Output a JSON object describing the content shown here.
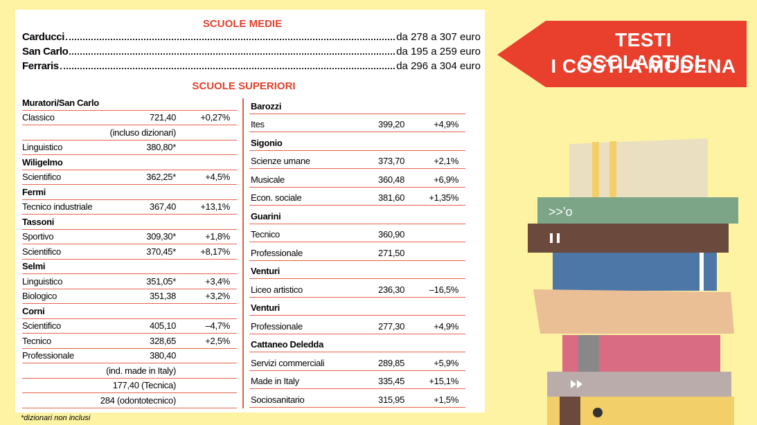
{
  "title_lines": [
    "TESTI SCOLASTICI:",
    "I COSTI A MODENA"
  ],
  "medie": {
    "heading": "SCUOLE MEDIE",
    "rows": [
      {
        "name": "Carducci",
        "range": "da 278 a 307 euro"
      },
      {
        "name": "San Carlo",
        "range": "da 195 a 259 euro"
      },
      {
        "name": "Ferraris",
        "range": "da 296 a 304 euro"
      }
    ]
  },
  "superiori": {
    "heading": "SCUOLE SUPERIORI",
    "left": [
      {
        "school": "Muratori/San Carlo"
      },
      {
        "course": "Classico",
        "price": "721,40",
        "change": "+0,27%"
      },
      {
        "note": "(incluso dizionari)"
      },
      {
        "course": "Linguistico",
        "price": "380,80*"
      },
      {
        "school": "Wiligelmo"
      },
      {
        "course": "Scientifico",
        "price": "362,25*",
        "change": "+4,5%"
      },
      {
        "school": "Fermi"
      },
      {
        "course": "Tecnico industriale",
        "price": "367,40",
        "change": "+13,1%"
      },
      {
        "school": "Tassoni"
      },
      {
        "course": "Sportivo",
        "price": "309,30*",
        "change": "+1,8%"
      },
      {
        "course": "Scientifico",
        "price": "370,45*",
        "change": "+8,17%"
      },
      {
        "school": "Selmi"
      },
      {
        "course": "Linguistico",
        "price": "351,05*",
        "change": "+3,4%"
      },
      {
        "course": "Biologico",
        "price": "351,38",
        "change": "+3,2%"
      },
      {
        "school": "Corni"
      },
      {
        "course": "Scientifico",
        "price": "405,10",
        "change": "–4,7%"
      },
      {
        "course": "Tecnico",
        "price": "328,65",
        "change": "+2,5%"
      },
      {
        "course": "Professionale",
        "price": "380,40"
      },
      {
        "note": "(ind. made in Italy)"
      },
      {
        "note": "177,40 (Tecnica)"
      },
      {
        "note": "284 (odontotecnico)"
      }
    ],
    "right": [
      {
        "school": "Barozzi"
      },
      {
        "course": "Ites",
        "price": "399,20",
        "change": "+4,9%"
      },
      {
        "school": "Sigonio"
      },
      {
        "course": "Scienze umane",
        "price": "373,70",
        "change": "+2,1%"
      },
      {
        "course": "Musicale",
        "price": "360,48",
        "change": "+6,9%"
      },
      {
        "course": "Econ. sociale",
        "price": "381,60",
        "change": "+1,35%"
      },
      {
        "school": "Guarini"
      },
      {
        "course": "Tecnico",
        "price": "360,90"
      },
      {
        "course": "Professionale",
        "price": "271,50"
      },
      {
        "school": "Venturi"
      },
      {
        "course": "Liceo artistico",
        "price": "236,30",
        "change": "–16,5%"
      },
      {
        "school": "Venturi"
      },
      {
        "course": "Professionale",
        "price": "277,30",
        "change": "+4,9%"
      },
      {
        "school": "Cattaneo Deledda"
      },
      {
        "course": "Servizi commerciali",
        "price": "289,85",
        "change": "+5,9%"
      },
      {
        "course": "Made in Italy",
        "price": "335,45",
        "change": "+15,1%"
      },
      {
        "course": "Sociosanitario",
        "price": "315,95",
        "change": "+1,5%"
      }
    ]
  },
  "footnote": "*dizionari non inclusi"
}
